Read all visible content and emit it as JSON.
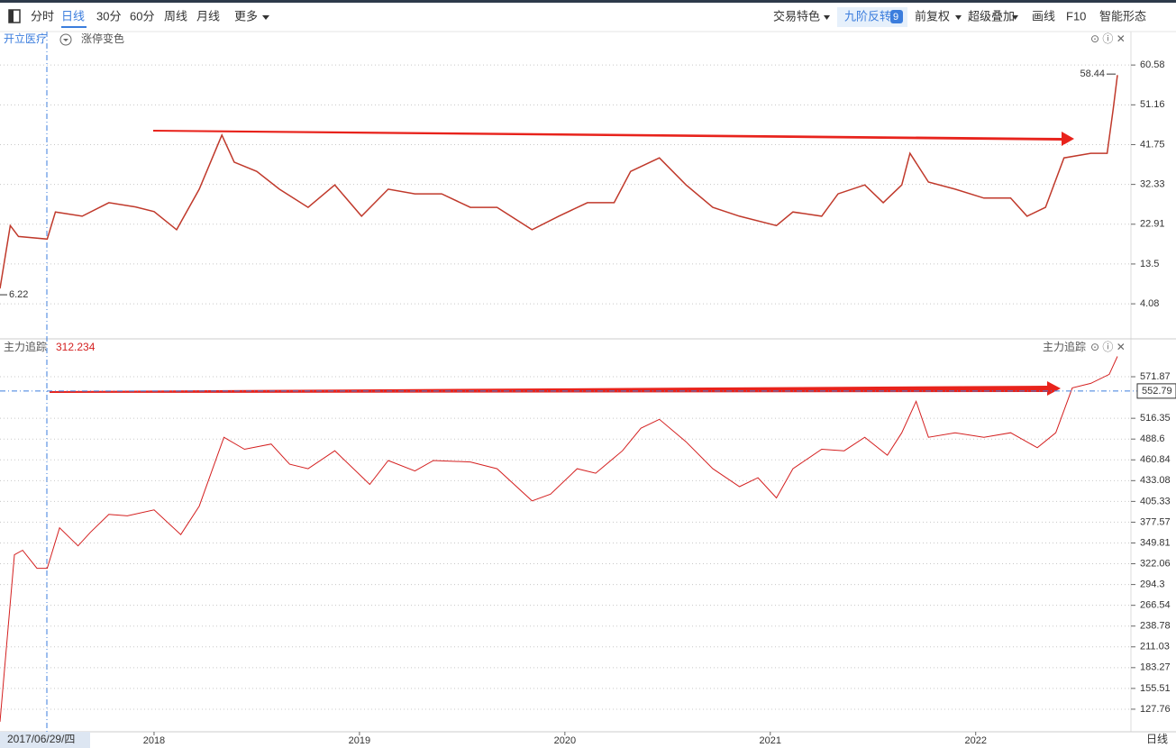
{
  "toolbar": {
    "left": [
      "分时",
      "日线",
      "30分",
      "60分",
      "周线",
      "月线",
      "更多"
    ],
    "right": [
      "交易特色",
      "九阶反转",
      "9",
      "前复权",
      "超级叠加",
      "画线",
      "F10",
      "智能形态"
    ]
  },
  "cursor_date": "2017/06/29/四",
  "period": "日线",
  "chart_data": [
    {
      "type": "line",
      "title": "开立医疗",
      "subtitle": "涨停变色",
      "color": "#c0392b",
      "x": [
        2017.25,
        2017.3,
        2017.34,
        2017.48,
        2017.52,
        2017.65,
        2017.78,
        2017.91,
        2018.0,
        2018.11,
        2018.22,
        2018.33,
        2018.39,
        2018.5,
        2018.61,
        2018.75,
        2018.88,
        2019.01,
        2019.14,
        2019.27,
        2019.4,
        2019.54,
        2019.67,
        2019.84,
        2019.97,
        2020.11,
        2020.24,
        2020.32,
        2020.46,
        2020.59,
        2020.72,
        2020.85,
        2021.03,
        2021.11,
        2021.25,
        2021.33,
        2021.46,
        2021.55,
        2021.64,
        2021.68,
        2021.77,
        2021.9,
        2022.04,
        2022.17,
        2022.25,
        2022.34,
        2022.43,
        2022.56,
        2022.64,
        2022.67,
        2022.69
      ],
      "values": [
        7.7,
        22.6,
        20.0,
        19.4,
        25.8,
        24.8,
        28.0,
        27.0,
        25.9,
        21.6,
        31.2,
        44.0,
        37.6,
        35.4,
        31.2,
        26.9,
        32.2,
        24.8,
        31.2,
        30.1,
        30.1,
        26.9,
        26.9,
        21.6,
        24.8,
        28.0,
        28.0,
        35.4,
        38.6,
        32.2,
        26.9,
        24.8,
        22.6,
        25.8,
        24.8,
        30.1,
        32.2,
        28.0,
        32.2,
        39.7,
        32.9,
        31.2,
        29.1,
        29.1,
        24.8,
        26.9,
        38.6,
        39.7,
        39.7,
        50.3,
        58.2
      ],
      "high": 58.44,
      "low": 6.22,
      "xlim": [
        2017.25,
        2022.69
      ],
      "ylim": [
        -4,
        68.5
      ],
      "yticks": [
        60.58,
        51.16,
        41.75,
        32.33,
        22.91,
        13.5,
        4.08
      ],
      "grid": true
    },
    {
      "type": "line",
      "title": "主力追踪",
      "current": 312.234,
      "reference": 552.79,
      "color": "#d42020",
      "x": [
        2017.25,
        2017.32,
        2017.36,
        2017.43,
        2017.48,
        2017.54,
        2017.63,
        2017.69,
        2017.78,
        2017.87,
        2018.0,
        2018.13,
        2018.22,
        2018.34,
        2018.44,
        2018.57,
        2018.66,
        2018.75,
        2018.88,
        2019.05,
        2019.14,
        2019.27,
        2019.36,
        2019.54,
        2019.67,
        2019.84,
        2019.93,
        2020.06,
        2020.15,
        2020.28,
        2020.37,
        2020.46,
        2020.59,
        2020.72,
        2020.85,
        2020.94,
        2021.03,
        2021.11,
        2021.25,
        2021.36,
        2021.46,
        2021.57,
        2021.64,
        2021.71,
        2021.77,
        2021.9,
        2022.04,
        2022.17,
        2022.3,
        2022.39,
        2022.47,
        2022.56,
        2022.65,
        2022.69
      ],
      "values": [
        111,
        334,
        340,
        316,
        316,
        370,
        346,
        364,
        388,
        386,
        394,
        361,
        399,
        491,
        475,
        482,
        455,
        449,
        473,
        428,
        460,
        446,
        460,
        458,
        449,
        406,
        415,
        449,
        443,
        473,
        503,
        515,
        485,
        449,
        425,
        437,
        410,
        449,
        475,
        473,
        491,
        467,
        497,
        539,
        491,
        497,
        491,
        497,
        477,
        497,
        557,
        563,
        575,
        599
      ],
      "xlim": [
        2017.25,
        2022.69
      ],
      "ylim": [
        100,
        599.6
      ],
      "yticks": [
        571.87,
        516.35,
        488.6,
        460.84,
        433.08,
        405.33,
        377.57,
        349.81,
        322.06,
        294.3,
        266.54,
        238.78,
        211.03,
        183.27,
        155.51,
        127.76
      ],
      "xticks": [
        2018,
        2019,
        2020,
        2021,
        2022
      ],
      "grid": true
    }
  ]
}
